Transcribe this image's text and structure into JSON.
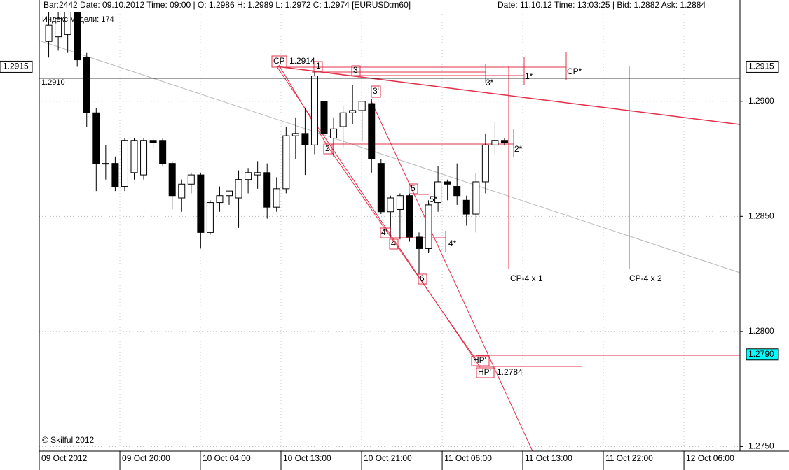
{
  "header": {
    "left": "Bar:2442 Date: 09.10.2012 Time: 09:00 | O: 1.2986 H: 1.2989 L: 1.2972 C: 1.2974 [EURUSD:m60]",
    "right": "Date: 11.10.12 Time: 13:03:25 | Bid: 1.2882 Ask: 1.2884"
  },
  "model_index": "Индекс модели: 174",
  "copyright": "© Skilful 2012",
  "chart_data": {
    "type": "candlestick",
    "x": [
      1,
      2,
      3,
      4,
      5,
      6,
      7,
      8,
      9,
      10,
      11,
      12,
      13,
      14,
      15,
      16,
      17,
      18,
      19,
      20,
      21,
      22,
      23,
      24,
      25,
      26,
      27,
      28,
      29,
      30,
      31,
      32,
      33,
      34,
      35,
      36,
      37,
      38,
      39,
      40,
      41,
      42,
      43,
      44,
      45,
      46,
      47,
      48,
      49
    ],
    "open": [
      1.2926,
      1.2928,
      1.2929,
      1.294,
      1.2919,
      1.2895,
      1.2873,
      1.2873,
      1.2863,
      1.2869,
      1.2868,
      1.2883,
      1.2883,
      1.2873,
      1.2858,
      1.2864,
      1.2868,
      1.2843,
      1.2856,
      1.2859,
      1.2858,
      1.2866,
      1.2868,
      1.2869,
      1.2854,
      1.2862,
      1.2885,
      1.2886,
      1.2881,
      1.29,
      1.2884,
      1.2889,
      1.2895,
      1.2896,
      1.2899,
      1.2873,
      1.2852,
      1.2853,
      1.2859,
      1.2841,
      1.2836,
      1.2856,
      1.2865,
      1.2863,
      1.2857,
      1.2851,
      1.2865,
      1.2881,
      1.2883
    ],
    "high": [
      1.2941,
      1.2943,
      1.2944,
      1.2944,
      1.2921,
      1.2897,
      1.2881,
      1.2876,
      1.2884,
      1.2884,
      1.2884,
      1.2884,
      1.2884,
      1.2874,
      1.2866,
      1.2869,
      1.2869,
      1.2857,
      1.2863,
      1.2861,
      1.287,
      1.2871,
      1.2874,
      1.2873,
      1.2867,
      1.2889,
      1.2893,
      1.2897,
      1.2913,
      1.2903,
      1.2893,
      1.2898,
      1.2907,
      1.29,
      1.2901,
      1.2875,
      1.2859,
      1.286,
      1.286,
      1.2843,
      1.2857,
      1.2872,
      1.2866,
      1.2873,
      1.2859,
      1.2869,
      1.2886,
      1.2891,
      1.2884
    ],
    "low": [
      1.2919,
      1.2922,
      1.2921,
      1.2915,
      1.2889,
      1.2861,
      1.2866,
      1.2861,
      1.2861,
      1.2866,
      1.2866,
      1.288,
      1.2872,
      1.2853,
      1.2852,
      1.286,
      1.2836,
      1.2842,
      1.2852,
      1.2855,
      1.2845,
      1.286,
      1.2862,
      1.2849,
      1.2852,
      1.286,
      1.2875,
      1.2868,
      1.2877,
      1.288,
      1.2876,
      1.288,
      1.289,
      1.2883,
      1.2869,
      1.2851,
      1.2841,
      1.284,
      1.2839,
      1.2825,
      1.2834,
      1.2852,
      1.2857,
      1.2855,
      1.2846,
      1.2843,
      1.286,
      1.2877,
      1.2881
    ],
    "close": [
      1.2933,
      1.2936,
      1.294,
      1.2918,
      1.2895,
      1.2873,
      1.2873,
      1.2863,
      1.2883,
      1.2883,
      1.2883,
      1.2882,
      1.2873,
      1.2859,
      1.2864,
      1.2868,
      1.2843,
      1.2856,
      1.2859,
      1.2861,
      1.2866,
      1.2869,
      1.2869,
      1.2854,
      1.2862,
      1.2885,
      1.2886,
      1.2881,
      1.2911,
      1.2886,
      1.2888,
      1.2895,
      1.2896,
      1.29,
      1.2875,
      1.2852,
      1.2858,
      1.2859,
      1.2841,
      1.2836,
      1.2855,
      1.2865,
      1.2864,
      1.2859,
      1.2851,
      1.2865,
      1.2881,
      1.2883,
      1.2882
    ],
    "up_color": "#ffffff",
    "down_color": "#000000",
    "xlim": [
      0,
      73.8
    ],
    "xticks": [
      {
        "value": 0,
        "label": "09 Oct 2012"
      },
      {
        "value": 8.49,
        "label": "09 Oct 20:00"
      },
      {
        "value": 16.97,
        "label": "10 Oct 04:00"
      },
      {
        "value": 25.46,
        "label": "10 Oct 13:00"
      },
      {
        "value": 33.95,
        "label": "10 Oct 21:00"
      },
      {
        "value": 42.44,
        "label": "11 Oct 06:00"
      },
      {
        "value": 50.92,
        "label": "11 Oct 13:00"
      },
      {
        "value": 59.41,
        "label": "11 Oct 22:00"
      },
      {
        "value": 67.9,
        "label": "12 Oct 06:00"
      }
    ],
    "ylim": [
      1.2748,
      1.2944
    ],
    "yticks": [
      {
        "value": 1.29,
        "label": "1.2900"
      },
      {
        "value": 1.285,
        "label": "1.2850"
      },
      {
        "value": 1.28,
        "label": "1.2800"
      },
      {
        "value": 1.275,
        "label": "1.2750"
      }
    ],
    "grid": true,
    "level": {
      "value": 1.291,
      "label": "1.2910"
    },
    "price_marker": 1.2915,
    "target_marker": {
      "value": 1.279,
      "label": "1.2790"
    },
    "annotations": [
      "CP",
      "1.2914",
      "1",
      "3",
      "3'",
      "2",
      "5",
      "5*",
      "4'",
      "4",
      "6",
      "4*",
      "2*",
      "3*",
      "1*",
      "CP*",
      "CP-4 x 1",
      "CP-4 x 2",
      "HP'",
      "HP'",
      "1.2784"
    ]
  }
}
